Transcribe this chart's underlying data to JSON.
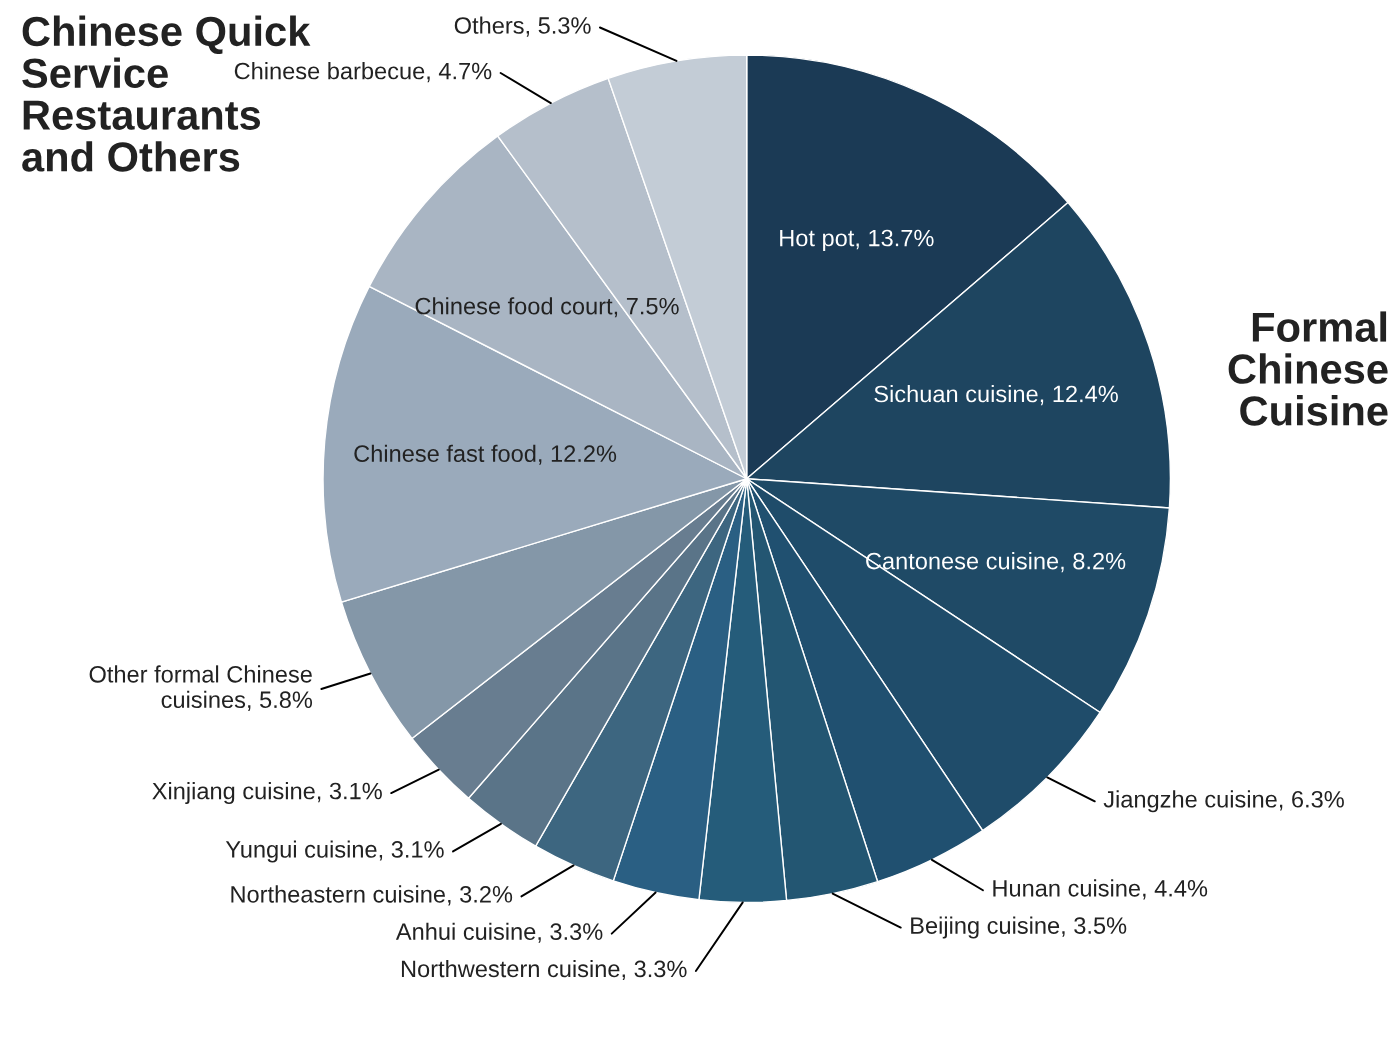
{
  "chart_data": {
    "type": "pie",
    "categories": [
      "Hot pot",
      "Sichuan cuisine",
      "Cantonese cuisine",
      "Jiangzhe cuisine",
      "Hunan cuisine",
      "Beijing cuisine",
      "Northwestern cuisine",
      "Anhui cuisine",
      "Northeastern cuisine",
      "Yungui cuisine",
      "Xinjiang cuisine",
      "Other formal Chinese cuisines",
      "Chinese fast food",
      "Chinese food court",
      "Chinese barbecue",
      "Others"
    ],
    "values": [
      13.7,
      12.4,
      8.2,
      6.3,
      4.4,
      3.5,
      3.3,
      3.3,
      3.2,
      3.1,
      3.1,
      5.8,
      12.2,
      7.5,
      4.7,
      5.3
    ],
    "value_labels": [
      "13.7%",
      "12.4%",
      "8.2%",
      "6.3%",
      "4.4%",
      "3.5%",
      "3.3%",
      "3.3%",
      "3.2%",
      "3.1%",
      "3.1%",
      "5.8%",
      "12.2%",
      "7.5%",
      "4.7%",
      "5.3%"
    ],
    "colors": [
      "#1b3a55",
      "#1e4560",
      "#1f4a66",
      "#1f4c6a",
      "#205070",
      "#235672",
      "#255c7a",
      "#2a5f83",
      "#3d6680",
      "#5a7488",
      "#687d90",
      "#8497a8",
      "#9aaabb",
      "#a9b5c3",
      "#b5bfcb",
      "#c3ccd6"
    ],
    "annotations": [
      "Formal Chinese Cuisine",
      "Chinese Quick Service Restaurants and Others"
    ],
    "legend": false
  }
}
